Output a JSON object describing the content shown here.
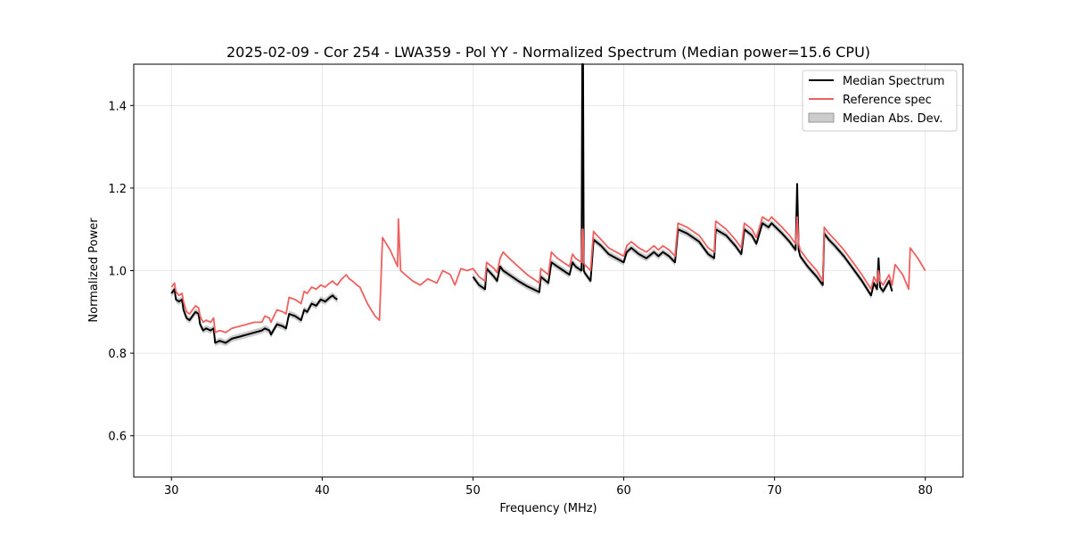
{
  "chart_data": {
    "type": "line",
    "title": "2025-02-09 - Cor 254 - LWA359 - Pol YY - Normalized Spectrum (Median power=15.6 CPU)",
    "xlabel": "Frequency (MHz)",
    "ylabel": "Normalized Power",
    "xlim": [
      27.5,
      82.5
    ],
    "ylim": [
      0.5,
      1.5
    ],
    "xticks": [
      30,
      40,
      50,
      60,
      70,
      80
    ],
    "yticks": [
      0.6,
      0.8,
      1.0,
      1.2,
      1.4
    ],
    "grid": true,
    "legend_position": "top-right",
    "colors": {
      "median": "#000000",
      "reference": "#f06060",
      "mad_fill": "#999999"
    },
    "legend": [
      "Median Spectrum",
      "Reference spec",
      "Median Abs. Dev."
    ],
    "series": [
      {
        "name": "Median Spectrum",
        "segments": [
          {
            "x": [
              30.0,
              30.2,
              30.3,
              30.5,
              30.7,
              30.8,
              31.0,
              31.2,
              31.4,
              31.6,
              31.8,
              31.9,
              32.1,
              32.3,
              32.6,
              32.8,
              32.9,
              33.2,
              33.6,
              34.0,
              34.5,
              35.0,
              35.5,
              36.0,
              36.2,
              36.5,
              36.6,
              37.0,
              37.4,
              37.6,
              37.8,
              38.2,
              38.6,
              38.8,
              39.0,
              39.3,
              39.6,
              39.9,
              40.2,
              40.5,
              40.7,
              40.8,
              41.0
            ],
            "y": [
              0.945,
              0.955,
              0.93,
              0.925,
              0.93,
              0.905,
              0.885,
              0.88,
              0.89,
              0.9,
              0.895,
              0.87,
              0.855,
              0.86,
              0.855,
              0.86,
              0.825,
              0.83,
              0.825,
              0.835,
              0.84,
              0.845,
              0.85,
              0.855,
              0.86,
              0.855,
              0.845,
              0.87,
              0.865,
              0.86,
              0.895,
              0.89,
              0.88,
              0.905,
              0.9,
              0.92,
              0.915,
              0.93,
              0.925,
              0.935,
              0.94,
              0.935,
              0.93
            ]
          },
          {
            "x": [
              50.0,
              50.4,
              50.8,
              50.9,
              51.4,
              51.6,
              51.8,
              52.0,
              52.4,
              53.0,
              53.6,
              54.0,
              54.4,
              54.5,
              55.0,
              55.2,
              55.6,
              56.0,
              56.4,
              56.6,
              56.8,
              57.2,
              57.25,
              57.3,
              57.35,
              57.4,
              57.8,
              58.0,
              58.1,
              58.5,
              59.0,
              59.5,
              60.0,
              60.2,
              60.5,
              61.0,
              61.5,
              62.0,
              62.3,
              62.6,
              63.0,
              63.4,
              63.6,
              64.2,
              65.0,
              65.6,
              66.0,
              66.1,
              66.8,
              67.4,
              67.8,
              68.0,
              68.5,
              68.8,
              69.2,
              69.6,
              69.8,
              70.5,
              71.0,
              71.4,
              71.5,
              71.6,
              71.7,
              72.2,
              72.8,
              73.2,
              73.3,
              73.6,
              74.0,
              74.6,
              75.2,
              75.8,
              76.4,
              76.6,
              76.8,
              76.9,
              77.0,
              77.2,
              77.6,
              77.8
            ],
            "y": [
              0.985,
              0.965,
              0.955,
              1.005,
              0.985,
              0.975,
              1.01,
              1.0,
              0.99,
              0.975,
              0.962,
              0.955,
              0.948,
              0.985,
              0.97,
              1.02,
              1.01,
              1.0,
              0.99,
              1.02,
              1.01,
              1.0,
              1.5,
              1.5,
              1.0,
              0.995,
              0.975,
              1.075,
              1.072,
              1.06,
              1.04,
              1.03,
              1.02,
              1.045,
              1.055,
              1.04,
              1.03,
              1.045,
              1.035,
              1.045,
              1.035,
              1.02,
              1.1,
              1.09,
              1.07,
              1.04,
              1.03,
              1.1,
              1.085,
              1.06,
              1.04,
              1.1,
              1.085,
              1.065,
              1.115,
              1.105,
              1.115,
              1.09,
              1.07,
              1.05,
              1.21,
              1.05,
              1.035,
              1.01,
              0.985,
              0.965,
              1.09,
              1.075,
              1.06,
              1.035,
              1.005,
              0.975,
              0.94,
              0.97,
              0.955,
              1.03,
              0.96,
              0.95,
              0.975,
              0.95
            ]
          }
        ]
      },
      {
        "name": "Reference spec",
        "x": [
          30.0,
          30.2,
          30.3,
          30.5,
          30.7,
          30.8,
          31.0,
          31.2,
          31.4,
          31.6,
          31.8,
          31.9,
          32.1,
          32.3,
          32.6,
          32.8,
          32.9,
          33.2,
          33.6,
          34.0,
          34.5,
          35.0,
          35.5,
          36.0,
          36.2,
          36.5,
          36.6,
          37.0,
          37.4,
          37.6,
          37.8,
          38.2,
          38.6,
          38.8,
          39.0,
          39.3,
          39.6,
          39.9,
          40.2,
          40.5,
          40.7,
          40.8,
          41.0,
          41.3,
          41.6,
          41.8,
          42.0,
          42.3,
          42.5,
          43.0,
          43.5,
          43.8,
          44.0,
          44.5,
          45.0,
          45.05,
          45.2,
          45.5,
          46.0,
          46.5,
          47.0,
          47.3,
          47.6,
          48.0,
          48.5,
          48.8,
          49.2,
          49.6,
          50.0,
          50.4,
          50.8,
          50.9,
          51.4,
          51.6,
          51.8,
          52.0,
          52.4,
          53.0,
          53.6,
          54.0,
          54.4,
          54.5,
          55.0,
          55.2,
          55.6,
          56.0,
          56.4,
          56.6,
          56.8,
          57.2,
          57.25,
          57.3,
          57.35,
          57.4,
          57.8,
          58.0,
          58.1,
          58.5,
          59.0,
          59.5,
          60.0,
          60.2,
          60.5,
          61.0,
          61.5,
          62.0,
          62.3,
          62.6,
          63.0,
          63.4,
          63.6,
          64.2,
          65.0,
          65.6,
          66.0,
          66.1,
          66.8,
          67.4,
          67.8,
          68.0,
          68.5,
          68.8,
          69.2,
          69.6,
          69.8,
          70.5,
          71.0,
          71.4,
          71.5,
          71.6,
          71.7,
          72.2,
          72.8,
          73.2,
          73.3,
          73.6,
          74.0,
          74.6,
          75.2,
          75.8,
          76.4,
          76.6,
          76.8,
          76.9,
          77.0,
          77.2,
          77.6,
          77.8,
          78.0,
          78.5,
          78.9,
          79.0,
          79.5,
          80.0
        ],
        "y": [
          0.96,
          0.97,
          0.95,
          0.94,
          0.945,
          0.925,
          0.9,
          0.895,
          0.905,
          0.915,
          0.91,
          0.89,
          0.875,
          0.88,
          0.875,
          0.885,
          0.85,
          0.855,
          0.85,
          0.86,
          0.865,
          0.87,
          0.875,
          0.875,
          0.89,
          0.885,
          0.875,
          0.905,
          0.9,
          0.895,
          0.935,
          0.93,
          0.92,
          0.95,
          0.945,
          0.96,
          0.955,
          0.965,
          0.96,
          0.97,
          0.975,
          0.97,
          0.965,
          0.98,
          0.99,
          0.98,
          0.975,
          0.965,
          0.96,
          0.92,
          0.89,
          0.88,
          1.08,
          1.05,
          1.01,
          1.125,
          1.0,
          0.99,
          0.975,
          0.965,
          0.98,
          0.975,
          0.97,
          1.0,
          0.99,
          0.965,
          1.005,
          1.0,
          1.005,
          0.985,
          0.975,
          1.02,
          1.005,
          0.995,
          1.03,
          1.045,
          1.03,
          1.01,
          0.99,
          0.98,
          0.97,
          1.005,
          0.99,
          1.045,
          1.03,
          1.02,
          1.01,
          1.04,
          1.03,
          1.02,
          1.1,
          1.1,
          1.02,
          1.015,
          1.0,
          1.095,
          1.09,
          1.075,
          1.055,
          1.045,
          1.035,
          1.06,
          1.07,
          1.055,
          1.045,
          1.06,
          1.05,
          1.06,
          1.05,
          1.035,
          1.115,
          1.105,
          1.085,
          1.055,
          1.045,
          1.12,
          1.1,
          1.075,
          1.055,
          1.115,
          1.1,
          1.08,
          1.13,
          1.12,
          1.13,
          1.105,
          1.085,
          1.065,
          1.13,
          1.065,
          1.05,
          1.025,
          1.0,
          0.975,
          1.105,
          1.09,
          1.075,
          1.05,
          1.02,
          0.99,
          0.955,
          0.985,
          0.97,
          1.0,
          0.975,
          0.965,
          0.99,
          0.965,
          1.015,
          0.99,
          0.955,
          1.055,
          1.03,
          1.0
        ]
      }
    ]
  }
}
